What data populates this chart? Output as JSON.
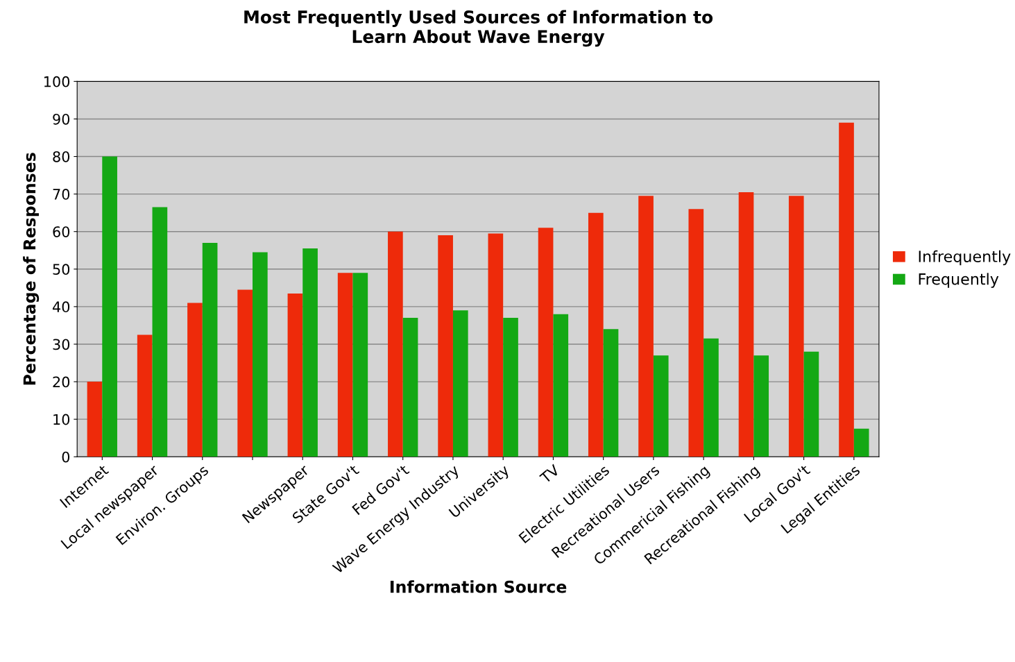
{
  "chart_data": {
    "type": "bar",
    "title": "Most Frequently Used Sources of Information to\nLearn About Wave Energy",
    "xlabel": "Information Source",
    "ylabel": "Percentage of Responses",
    "categories": [
      "Internet",
      "Local newspaper",
      "Environ. Groups",
      null,
      "Newspaper",
      "State Gov't",
      "Fed Gov't",
      "Wave Energy Industry",
      "University",
      "TV",
      "Electric Utilities",
      "Recreational Users",
      "Commericial Fishing",
      "Recreational Fishing",
      "Local Gov't",
      "Legal Entities"
    ],
    "series": [
      {
        "name": "Infrequently",
        "color": "#ee2a0a",
        "values": [
          20,
          32.5,
          41,
          44.5,
          43.5,
          49,
          60,
          59,
          59.5,
          61,
          65,
          69.5,
          66,
          70.5,
          69.5,
          89
        ]
      },
      {
        "name": "Frequently",
        "color": "#14a814",
        "values": [
          80,
          66.5,
          57,
          54.5,
          55.5,
          49,
          37,
          39,
          37,
          38,
          34,
          27,
          31.5,
          27,
          28,
          7.5
        ]
      }
    ],
    "ylim": [
      0,
      100
    ],
    "yticks": [
      0,
      10,
      20,
      30,
      40,
      50,
      60,
      70,
      80,
      90,
      100
    ],
    "grid": "y",
    "legend": "right"
  }
}
